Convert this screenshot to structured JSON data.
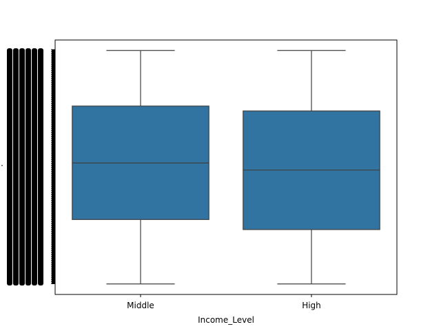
{
  "chart_data": {
    "type": "box",
    "xlabel": "Income_Level",
    "ylabel": "",
    "categories": [
      "Middle",
      "High"
    ],
    "boxes": [
      {
        "category": "Middle",
        "whisker_low": 0.0,
        "q1": 0.276,
        "median": 0.518,
        "q3": 0.762,
        "whisker_high": 1.0
      },
      {
        "category": "High",
        "whisker_low": 0.0,
        "q1": 0.233,
        "median": 0.488,
        "q3": 0.741,
        "whisker_high": 1.0
      }
    ],
    "ylim": [
      -0.045,
      1.045
    ],
    "box_color": "#3274a1",
    "line_color": "#3f3f3f",
    "grid": false,
    "legend": "none",
    "y_ticks": "overplotted"
  }
}
